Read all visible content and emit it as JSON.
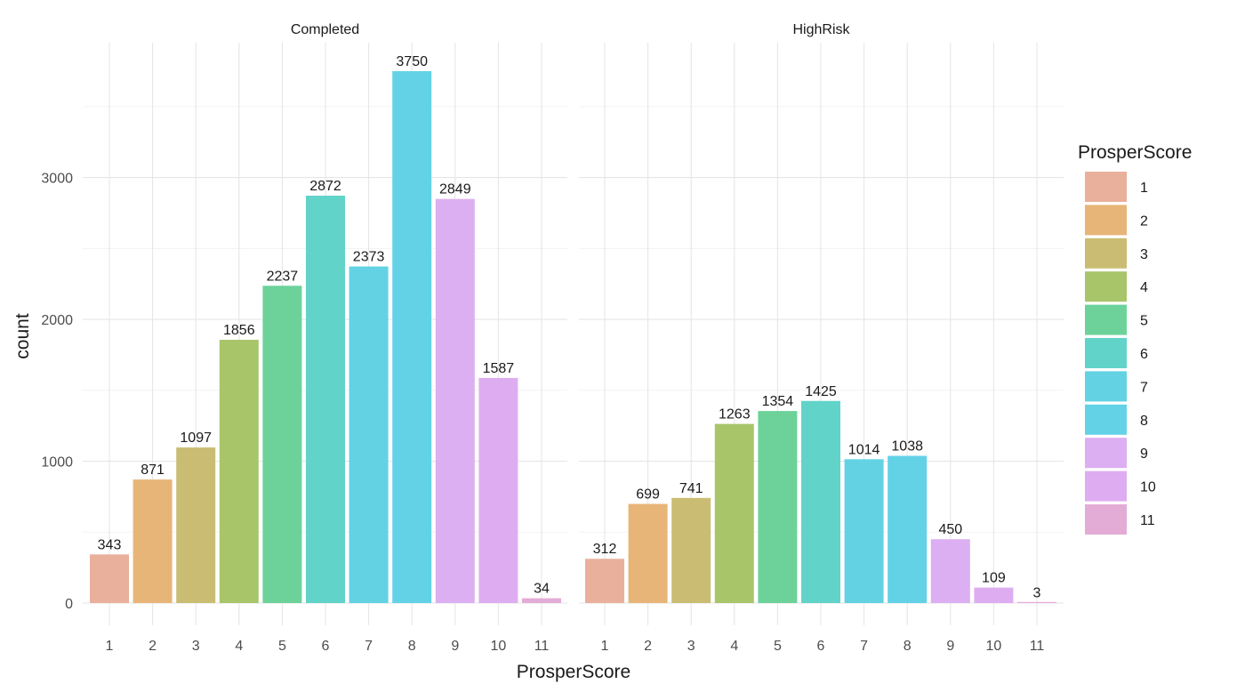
{
  "chart_data": {
    "type": "bar",
    "title": "",
    "xlabel": "ProsperScore",
    "ylabel": "count",
    "ylim": [
      0,
      3750
    ],
    "y_ticks": [
      0,
      1000,
      2000,
      3000
    ],
    "grid": true,
    "legend": {
      "title": "ProsperScore",
      "placement": "right",
      "entries": [
        {
          "label": "1",
          "color": "#e9b09c"
        },
        {
          "label": "2",
          "color": "#e7b578"
        },
        {
          "label": "3",
          "color": "#cabd73"
        },
        {
          "label": "4",
          "color": "#a8c56a"
        },
        {
          "label": "5",
          "color": "#6cd29a"
        },
        {
          "label": "6",
          "color": "#62d3c8"
        },
        {
          "label": "7",
          "color": "#63d2e3"
        },
        {
          "label": "8",
          "color": "#63d2e6"
        },
        {
          "label": "9",
          "color": "#dbaff1"
        },
        {
          "label": "10",
          "color": "#deadf1"
        },
        {
          "label": "11",
          "color": "#e3acd7"
        }
      ]
    },
    "categories": [
      "1",
      "2",
      "3",
      "4",
      "5",
      "6",
      "7",
      "8",
      "9",
      "10",
      "11"
    ],
    "facets": [
      {
        "name": "Completed",
        "values": [
          343,
          871,
          1097,
          1856,
          2237,
          2872,
          2373,
          3750,
          2849,
          1587,
          34
        ]
      },
      {
        "name": "HighRisk",
        "values": [
          312,
          699,
          741,
          1263,
          1354,
          1425,
          1014,
          1038,
          450,
          109,
          3
        ]
      }
    ]
  }
}
